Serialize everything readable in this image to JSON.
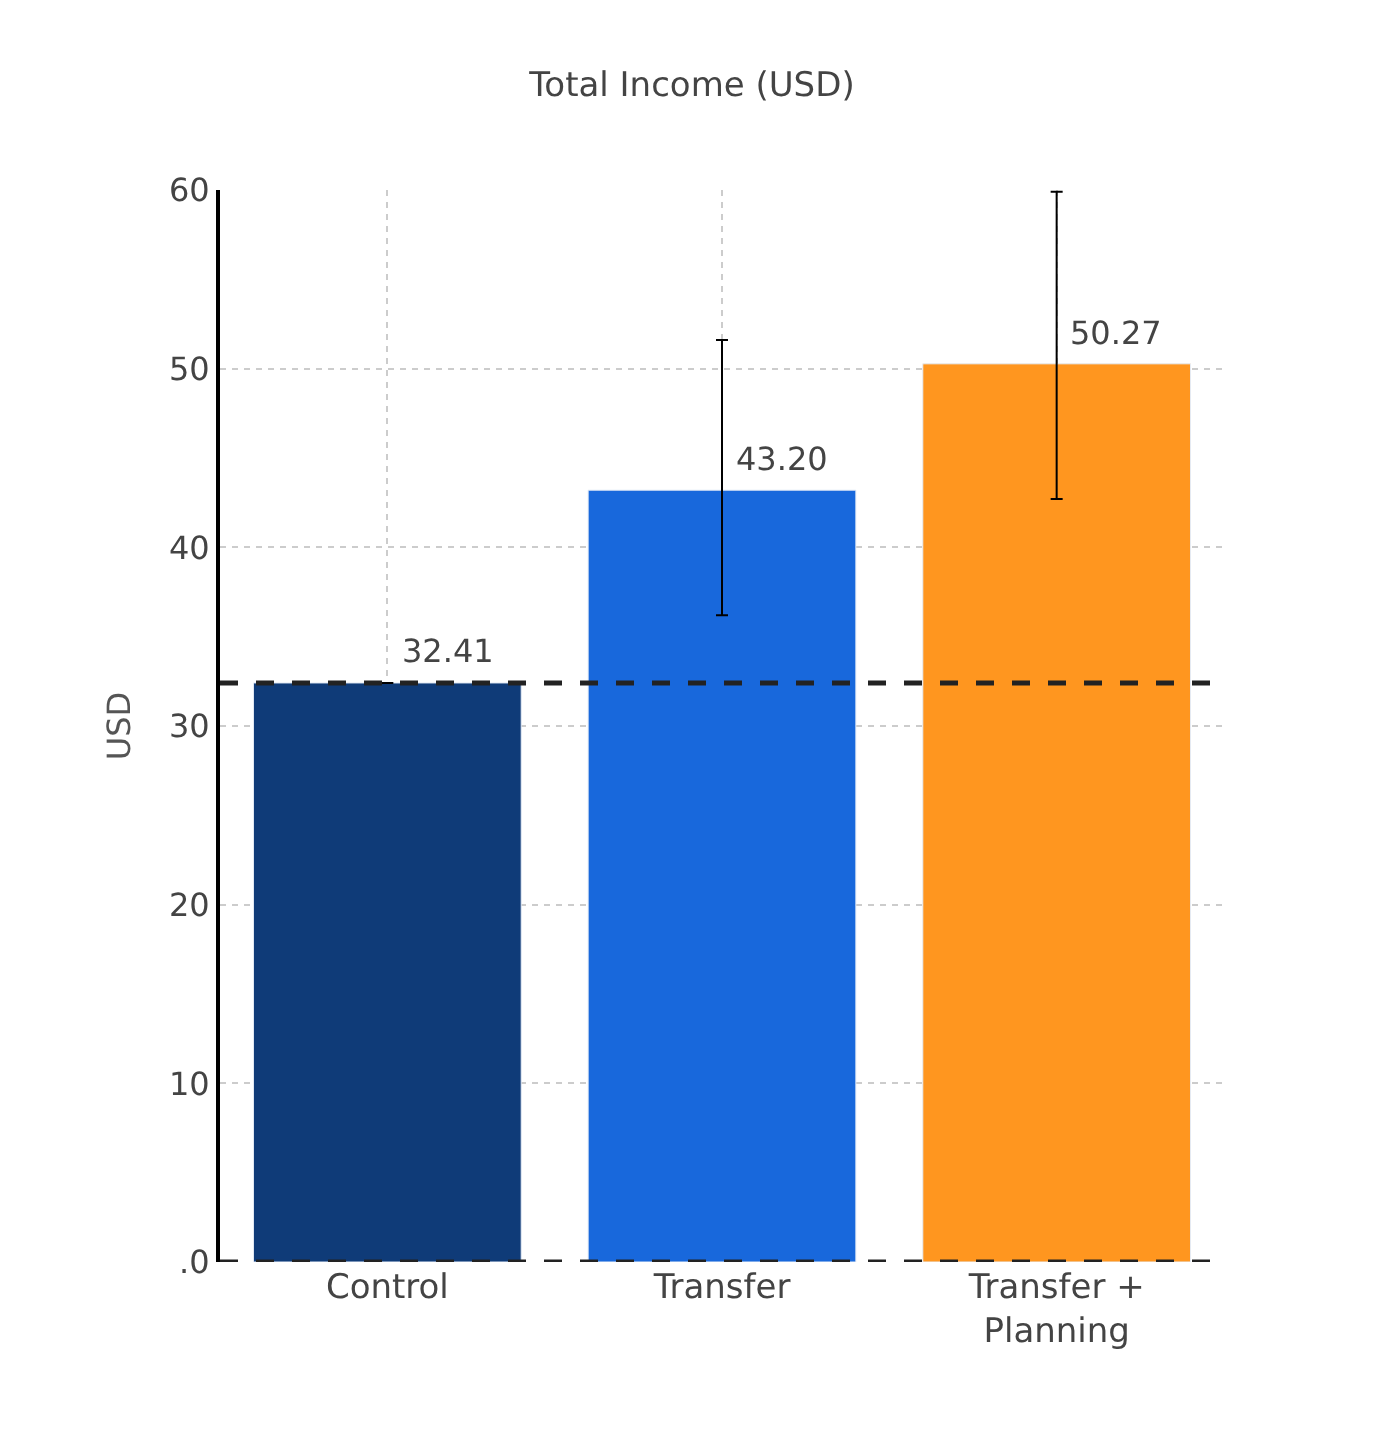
{
  "chart_data": {
    "type": "bar",
    "title": "Total Income (USD)",
    "ylabel": "USD",
    "categories": [
      "Control",
      "Transfer",
      "Transfer +\nPlanning"
    ],
    "series": [
      {
        "colors": [
          "#0f3b78",
          "#1868dc",
          "#ff961f"
        ],
        "values": [
          32.41,
          43.2,
          50.27
        ],
        "value_labels": [
          "32.41",
          "43.20",
          "50.27"
        ],
        "errors": [
          null,
          [
            36.2,
            51.6
          ],
          [
            42.7,
            59.9
          ]
        ]
      }
    ],
    "ylim": [
      0,
      60
    ],
    "yticks": [
      {
        "value": 0,
        "label": ".0"
      },
      10,
      20,
      30,
      40,
      50,
      60
    ],
    "ref_lines": [
      {
        "axis": "y",
        "value": 32.41,
        "color": "#222222",
        "line_style": "dashed"
      },
      {
        "axis": "y",
        "value": 0,
        "color": "#222222",
        "line_style": "dashed"
      }
    ],
    "grid": true
  }
}
